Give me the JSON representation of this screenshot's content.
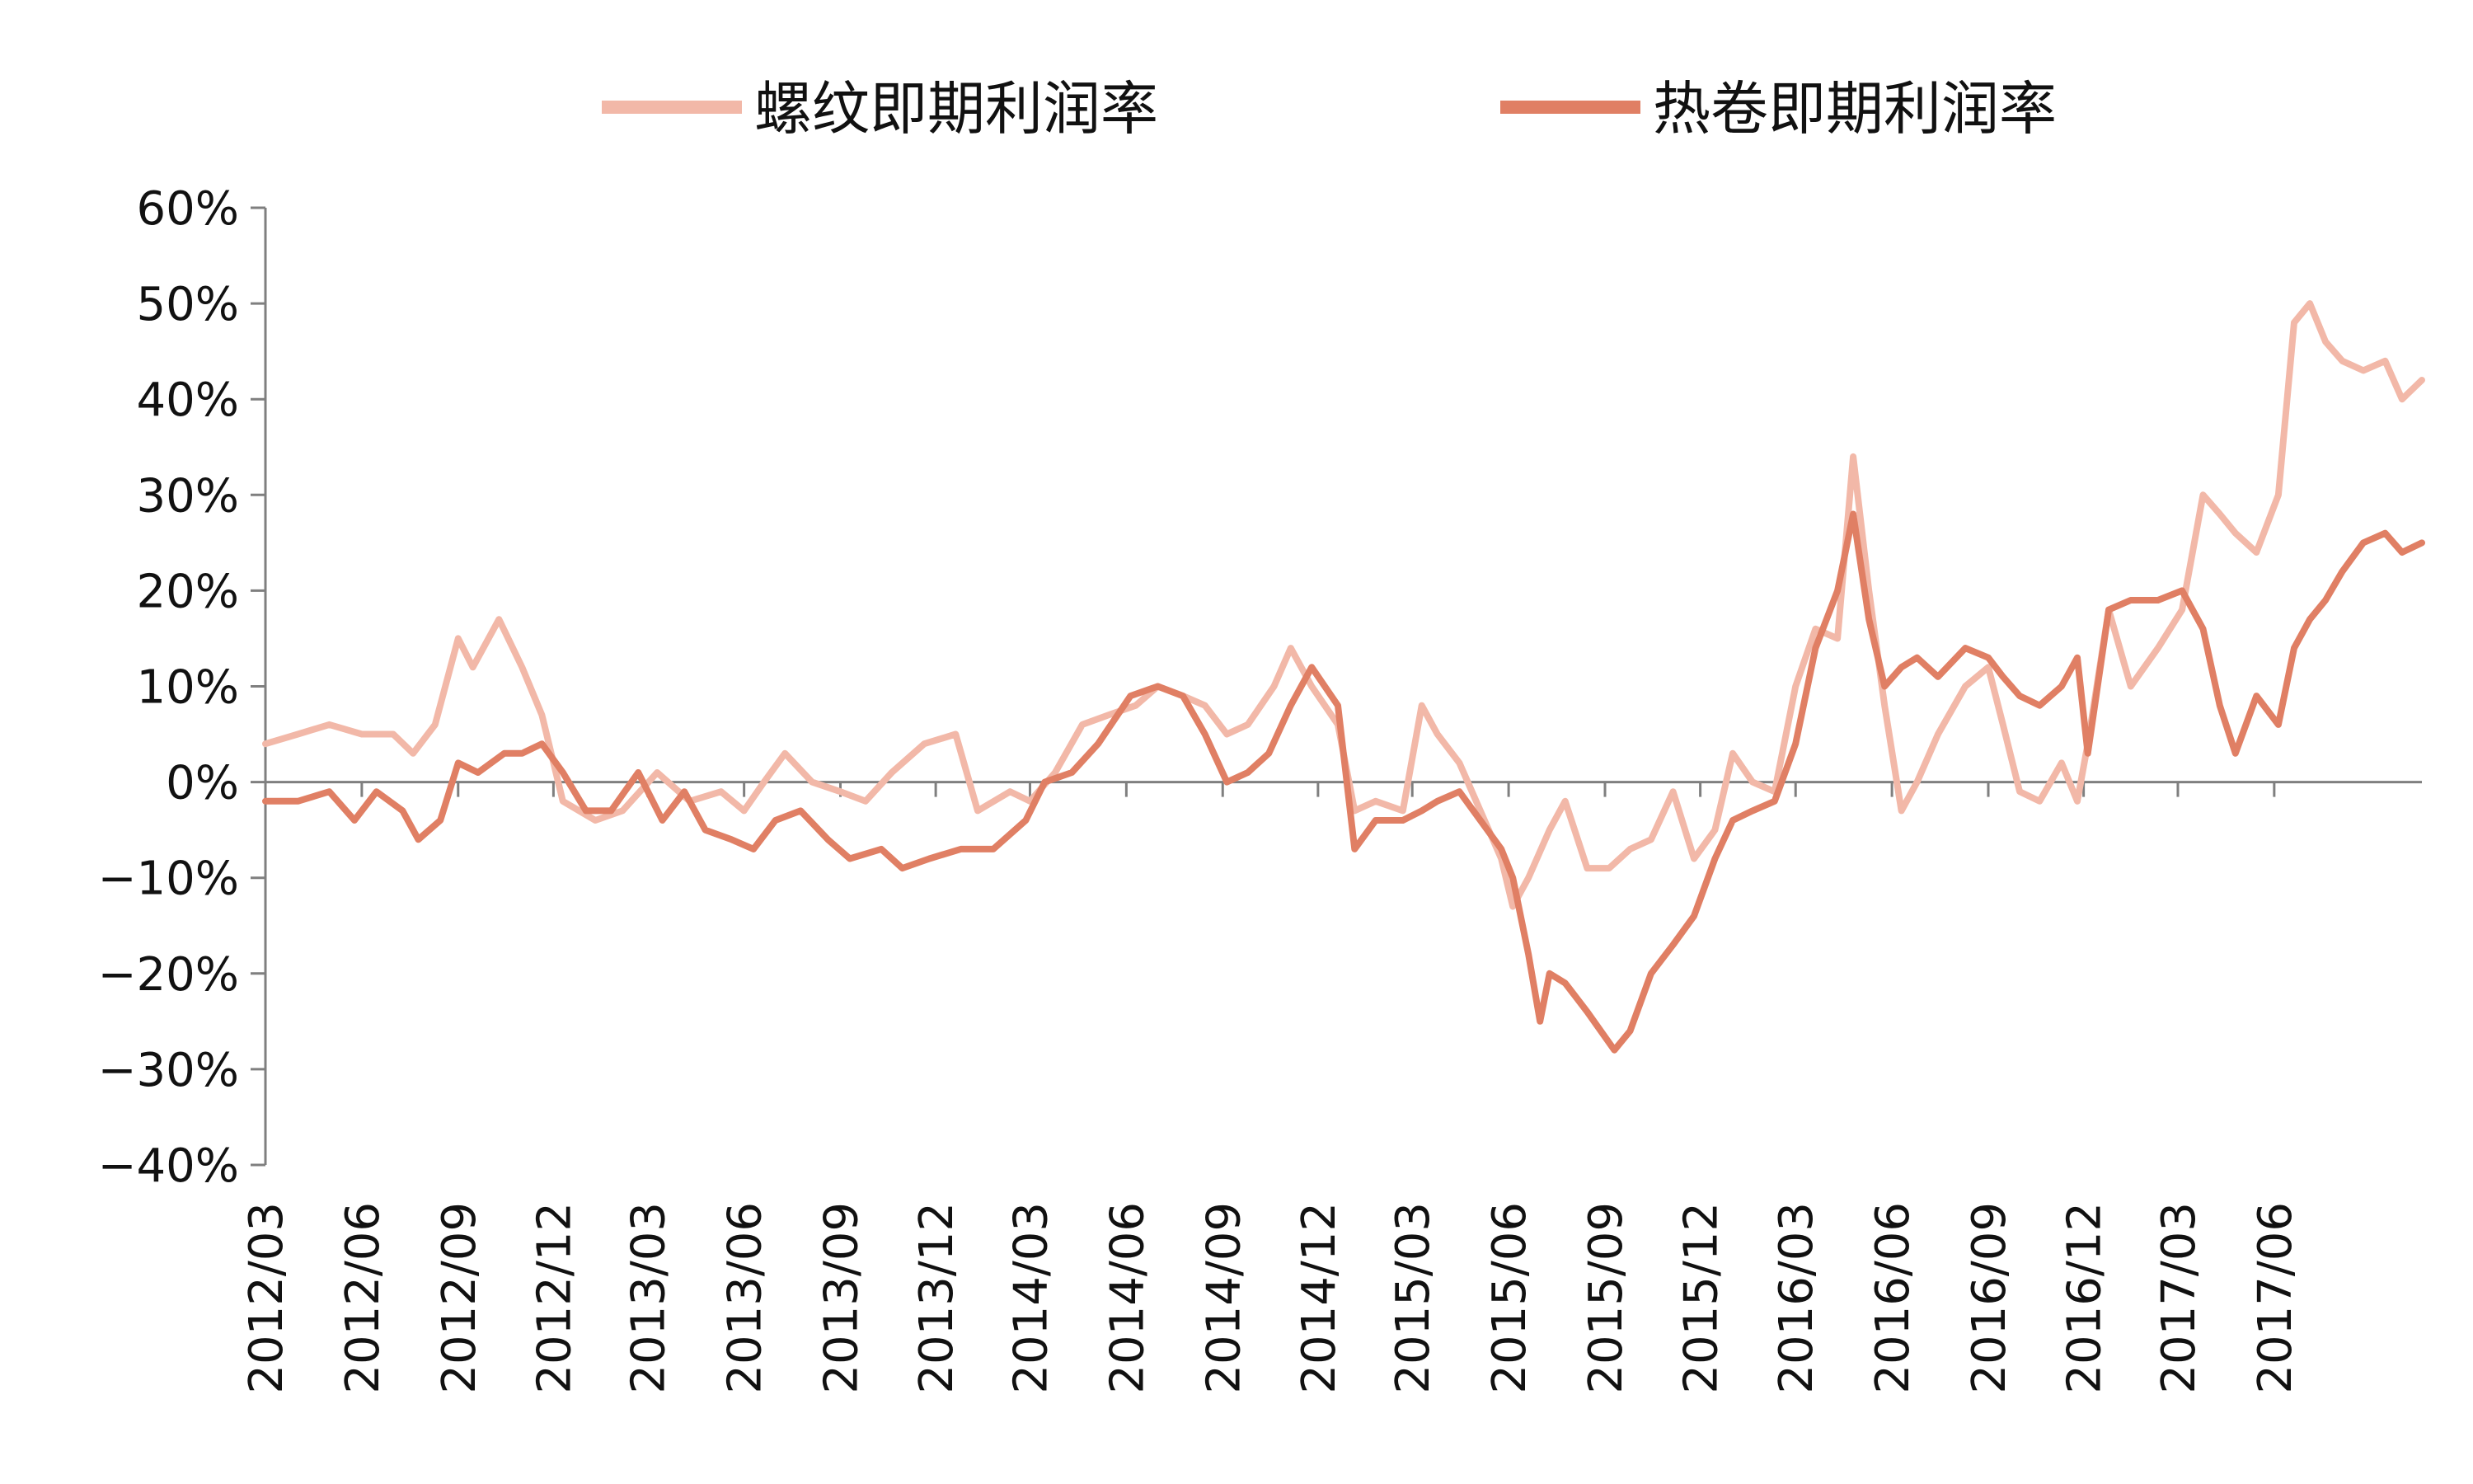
{
  "chart_data": {
    "type": "line",
    "title": "",
    "xlabel": "",
    "ylabel": "",
    "legend_position": "top",
    "grid": false,
    "ylim": [
      -40,
      60
    ],
    "y_ticks": [
      "60%",
      "50%",
      "40%",
      "30%",
      "20%",
      "10%",
      "0%",
      "−10%",
      "−20%",
      "−30%",
      "−40%"
    ],
    "x_ticks": [
      "2012/03",
      "2012/06",
      "2012/09",
      "2012/12",
      "2013/03",
      "2013/06",
      "2013/09",
      "2013/12",
      "2014/03",
      "2014/06",
      "2014/09",
      "2014/12",
      "2015/03",
      "2015/06",
      "2015/09",
      "2015/12",
      "2016/03",
      "2016/06",
      "2016/09",
      "2016/12",
      "2017/03",
      "2017/06"
    ],
    "x_range": [
      "2012-03-01",
      "2017-10-20"
    ],
    "series": [
      {
        "name": "螺纹即期利润率",
        "color": "#F2B8A8",
        "points": [
          [
            "2012-03-01",
            4
          ],
          [
            "2012-04-01",
            5
          ],
          [
            "2012-05-01",
            6
          ],
          [
            "2012-06-01",
            5
          ],
          [
            "2012-07-01",
            5
          ],
          [
            "2012-07-20",
            3
          ],
          [
            "2012-08-10",
            6
          ],
          [
            "2012-09-01",
            15
          ],
          [
            "2012-09-15",
            12
          ],
          [
            "2012-10-10",
            17
          ],
          [
            "2012-11-01",
            12
          ],
          [
            "2012-11-20",
            7
          ],
          [
            "2012-12-10",
            -2
          ],
          [
            "2013-01-10",
            -4
          ],
          [
            "2013-02-05",
            -3
          ],
          [
            "2013-03-10",
            1
          ],
          [
            "2013-04-10",
            -2
          ],
          [
            "2013-05-10",
            -1
          ],
          [
            "2013-06-01",
            -3
          ],
          [
            "2013-06-20",
            0
          ],
          [
            "2013-07-10",
            3
          ],
          [
            "2013-08-05",
            0
          ],
          [
            "2013-09-01",
            -1
          ],
          [
            "2013-09-25",
            -2
          ],
          [
            "2013-10-20",
            1
          ],
          [
            "2013-11-20",
            4
          ],
          [
            "2013-12-20",
            5
          ],
          [
            "2014-01-10",
            -3
          ],
          [
            "2014-02-10",
            -1
          ],
          [
            "2014-03-01",
            -2
          ],
          [
            "2014-03-25",
            1
          ],
          [
            "2014-04-20",
            6
          ],
          [
            "2014-05-15",
            7
          ],
          [
            "2014-06-10",
            8
          ],
          [
            "2014-07-01",
            10
          ],
          [
            "2014-07-25",
            9
          ],
          [
            "2014-08-15",
            8
          ],
          [
            "2014-09-05",
            5
          ],
          [
            "2014-09-25",
            6
          ],
          [
            "2014-10-20",
            10
          ],
          [
            "2014-11-05",
            14
          ],
          [
            "2014-11-25",
            10
          ],
          [
            "2014-12-20",
            6
          ],
          [
            "2015-01-05",
            -3
          ],
          [
            "2015-01-25",
            -2
          ],
          [
            "2015-02-20",
            -3
          ],
          [
            "2015-03-10",
            8
          ],
          [
            "2015-03-25",
            5
          ],
          [
            "2015-04-15",
            2
          ],
          [
            "2015-05-05",
            -3
          ],
          [
            "2015-05-25",
            -8
          ],
          [
            "2015-06-05",
            -13
          ],
          [
            "2015-06-20",
            -10
          ],
          [
            "2015-07-10",
            -5
          ],
          [
            "2015-07-25",
            -2
          ],
          [
            "2015-08-15",
            -9
          ],
          [
            "2015-09-05",
            -9
          ],
          [
            "2015-09-25",
            -7
          ],
          [
            "2015-10-15",
            -6
          ],
          [
            "2015-11-05",
            -1
          ],
          [
            "2015-11-25",
            -8
          ],
          [
            "2015-12-15",
            -5
          ],
          [
            "2016-01-01",
            3
          ],
          [
            "2016-01-20",
            0
          ],
          [
            "2016-02-10",
            -1
          ],
          [
            "2016-03-01",
            10
          ],
          [
            "2016-03-20",
            16
          ],
          [
            "2016-04-10",
            15
          ],
          [
            "2016-04-25",
            34
          ],
          [
            "2016-05-10",
            20
          ],
          [
            "2016-05-25",
            8
          ],
          [
            "2016-06-10",
            -3
          ],
          [
            "2016-06-25",
            0
          ],
          [
            "2016-07-15",
            5
          ],
          [
            "2016-08-10",
            10
          ],
          [
            "2016-09-01",
            12
          ],
          [
            "2016-09-15",
            6
          ],
          [
            "2016-10-01",
            -1
          ],
          [
            "2016-10-20",
            -2
          ],
          [
            "2016-11-10",
            2
          ],
          [
            "2016-11-25",
            -2
          ],
          [
            "2016-12-05",
            4
          ],
          [
            "2016-12-25",
            18
          ],
          [
            "2017-01-15",
            10
          ],
          [
            "2017-02-10",
            14
          ],
          [
            "2017-03-05",
            18
          ],
          [
            "2017-03-25",
            30
          ],
          [
            "2017-04-10",
            28
          ],
          [
            "2017-04-25",
            26
          ],
          [
            "2017-05-15",
            24
          ],
          [
            "2017-06-05",
            30
          ],
          [
            "2017-06-20",
            48
          ],
          [
            "2017-07-05",
            50
          ],
          [
            "2017-07-20",
            46
          ],
          [
            "2017-08-05",
            44
          ],
          [
            "2017-08-25",
            43
          ],
          [
            "2017-09-15",
            44
          ],
          [
            "2017-10-01",
            40
          ],
          [
            "2017-10-20",
            42
          ]
        ]
      },
      {
        "name": "热卷即期利润率",
        "color": "#E07F64",
        "points": [
          [
            "2012-03-01",
            -2
          ],
          [
            "2012-04-01",
            -2
          ],
          [
            "2012-05-01",
            -1
          ],
          [
            "2012-05-25",
            -4
          ],
          [
            "2012-06-15",
            -1
          ],
          [
            "2012-07-10",
            -3
          ],
          [
            "2012-07-25",
            -6
          ],
          [
            "2012-08-15",
            -4
          ],
          [
            "2012-09-01",
            2
          ],
          [
            "2012-09-20",
            1
          ],
          [
            "2012-10-15",
            3
          ],
          [
            "2012-11-01",
            3
          ],
          [
            "2012-11-20",
            4
          ],
          [
            "2012-12-10",
            1
          ],
          [
            "2013-01-01",
            -3
          ],
          [
            "2013-01-25",
            -3
          ],
          [
            "2013-02-20",
            1
          ],
          [
            "2013-03-15",
            -4
          ],
          [
            "2013-04-05",
            -1
          ],
          [
            "2013-04-25",
            -5
          ],
          [
            "2013-05-20",
            -6
          ],
          [
            "2013-06-10",
            -7
          ],
          [
            "2013-07-01",
            -4
          ],
          [
            "2013-07-25",
            -3
          ],
          [
            "2013-08-20",
            -6
          ],
          [
            "2013-09-10",
            -8
          ],
          [
            "2013-10-10",
            -7
          ],
          [
            "2013-10-30",
            -9
          ],
          [
            "2013-11-25",
            -8
          ],
          [
            "2013-12-25",
            -7
          ],
          [
            "2014-01-25",
            -7
          ],
          [
            "2014-02-25",
            -4
          ],
          [
            "2014-03-15",
            0
          ],
          [
            "2014-04-10",
            1
          ],
          [
            "2014-05-05",
            4
          ],
          [
            "2014-06-05",
            9
          ],
          [
            "2014-07-01",
            10
          ],
          [
            "2014-07-25",
            9
          ],
          [
            "2014-08-15",
            5
          ],
          [
            "2014-09-05",
            0
          ],
          [
            "2014-09-25",
            1
          ],
          [
            "2014-10-15",
            3
          ],
          [
            "2014-11-05",
            8
          ],
          [
            "2014-11-25",
            12
          ],
          [
            "2014-12-20",
            8
          ],
          [
            "2015-01-05",
            -7
          ],
          [
            "2015-01-25",
            -4
          ],
          [
            "2015-02-20",
            -4
          ],
          [
            "2015-03-10",
            -3
          ],
          [
            "2015-03-25",
            -2
          ],
          [
            "2015-04-15",
            -1
          ],
          [
            "2015-05-05",
            -4
          ],
          [
            "2015-05-25",
            -7
          ],
          [
            "2015-06-05",
            -10
          ],
          [
            "2015-06-20",
            -18
          ],
          [
            "2015-07-01",
            -25
          ],
          [
            "2015-07-10",
            -20
          ],
          [
            "2015-07-25",
            -21
          ],
          [
            "2015-08-15",
            -24
          ],
          [
            "2015-09-10",
            -28
          ],
          [
            "2015-09-25",
            -26
          ],
          [
            "2015-10-15",
            -20
          ],
          [
            "2015-11-05",
            -17
          ],
          [
            "2015-11-25",
            -14
          ],
          [
            "2015-12-15",
            -8
          ],
          [
            "2016-01-01",
            -4
          ],
          [
            "2016-01-20",
            -3
          ],
          [
            "2016-02-10",
            -2
          ],
          [
            "2016-03-01",
            4
          ],
          [
            "2016-03-20",
            14
          ],
          [
            "2016-04-10",
            20
          ],
          [
            "2016-04-25",
            28
          ],
          [
            "2016-05-10",
            17
          ],
          [
            "2016-05-25",
            10
          ],
          [
            "2016-06-10",
            12
          ],
          [
            "2016-06-25",
            13
          ],
          [
            "2016-07-15",
            11
          ],
          [
            "2016-08-10",
            14
          ],
          [
            "2016-09-01",
            13
          ],
          [
            "2016-09-15",
            11
          ],
          [
            "2016-10-01",
            9
          ],
          [
            "2016-10-20",
            8
          ],
          [
            "2016-11-10",
            10
          ],
          [
            "2016-11-25",
            13
          ],
          [
            "2016-12-05",
            3
          ],
          [
            "2016-12-25",
            18
          ],
          [
            "2017-01-15",
            19
          ],
          [
            "2017-02-10",
            19
          ],
          [
            "2017-03-05",
            20
          ],
          [
            "2017-03-25",
            16
          ],
          [
            "2017-04-10",
            8
          ],
          [
            "2017-04-25",
            3
          ],
          [
            "2017-05-15",
            9
          ],
          [
            "2017-06-05",
            6
          ],
          [
            "2017-06-20",
            14
          ],
          [
            "2017-07-05",
            17
          ],
          [
            "2017-07-20",
            19
          ],
          [
            "2017-08-05",
            22
          ],
          [
            "2017-08-25",
            25
          ],
          [
            "2017-09-15",
            26
          ],
          [
            "2017-10-01",
            24
          ],
          [
            "2017-10-20",
            25
          ]
        ]
      }
    ]
  }
}
